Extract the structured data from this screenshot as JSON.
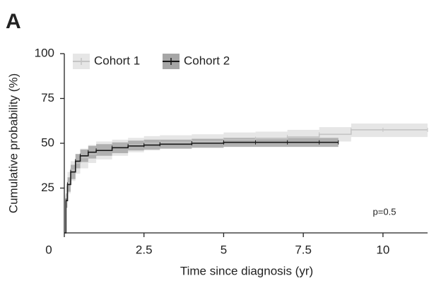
{
  "panel_label": "A",
  "chart_data": {
    "type": "step",
    "x_label": "Time since diagnosis (yr)",
    "y_label": "Cumulative probability (%)",
    "annotation": "p=0.5",
    "xlim": [
      0,
      11.4
    ],
    "ylim": [
      0,
      100
    ],
    "xticks": [
      0,
      2.5,
      5,
      7.5,
      10
    ],
    "yticks": [
      25,
      50,
      75,
      100
    ],
    "legend": "top-left",
    "series": [
      {
        "name": "Cohort 1",
        "color": "#c4c4c4",
        "band_color": "#e6e6e6",
        "x": [
          0,
          0.05,
          0.1,
          0.2,
          0.35,
          0.5,
          0.75,
          1,
          1.5,
          2,
          2.5,
          3,
          4,
          5,
          6,
          7,
          8,
          9,
          10,
          11.4
        ],
        "values": [
          0,
          20,
          28,
          35,
          39,
          42,
          44,
          46,
          47.5,
          49,
          50,
          50.5,
          51,
          52,
          52.5,
          53.5,
          55,
          57.5,
          57.5,
          57.5
        ],
        "lower": [
          0,
          14,
          22,
          29,
          33,
          36,
          39,
          41,
          43,
          45,
          46,
          47,
          48,
          49,
          49.5,
          50,
          51,
          53.5,
          53.5,
          53.5
        ],
        "upper": [
          0,
          26,
          34,
          40,
          44,
          47,
          49,
          51,
          52,
          53,
          54,
          54.5,
          55,
          56,
          56.5,
          57.5,
          59,
          61,
          61,
          61
        ]
      },
      {
        "name": "Cohort 2",
        "color": "#1a1a1a",
        "band_color": "#a6a6a6",
        "x": [
          0,
          0.05,
          0.1,
          0.2,
          0.35,
          0.5,
          0.75,
          1,
          1.5,
          2,
          2.5,
          3,
          4,
          5,
          6,
          7,
          8,
          8.6
        ],
        "values": [
          0,
          18,
          27,
          34,
          40,
          43,
          45,
          46,
          47.5,
          48.5,
          49,
          49.5,
          50,
          50.5,
          50.5,
          50.5,
          50.5,
          50.5
        ],
        "lower": [
          0,
          14,
          23,
          30,
          36,
          39.5,
          41.5,
          43,
          44.5,
          46,
          46.5,
          47,
          47.5,
          48,
          48,
          48,
          48,
          48
        ],
        "upper": [
          0,
          22,
          31,
          38,
          44,
          46.5,
          48.5,
          49.5,
          50.5,
          51.5,
          52,
          52,
          52.5,
          53,
          53,
          53,
          53,
          53
        ]
      }
    ]
  }
}
